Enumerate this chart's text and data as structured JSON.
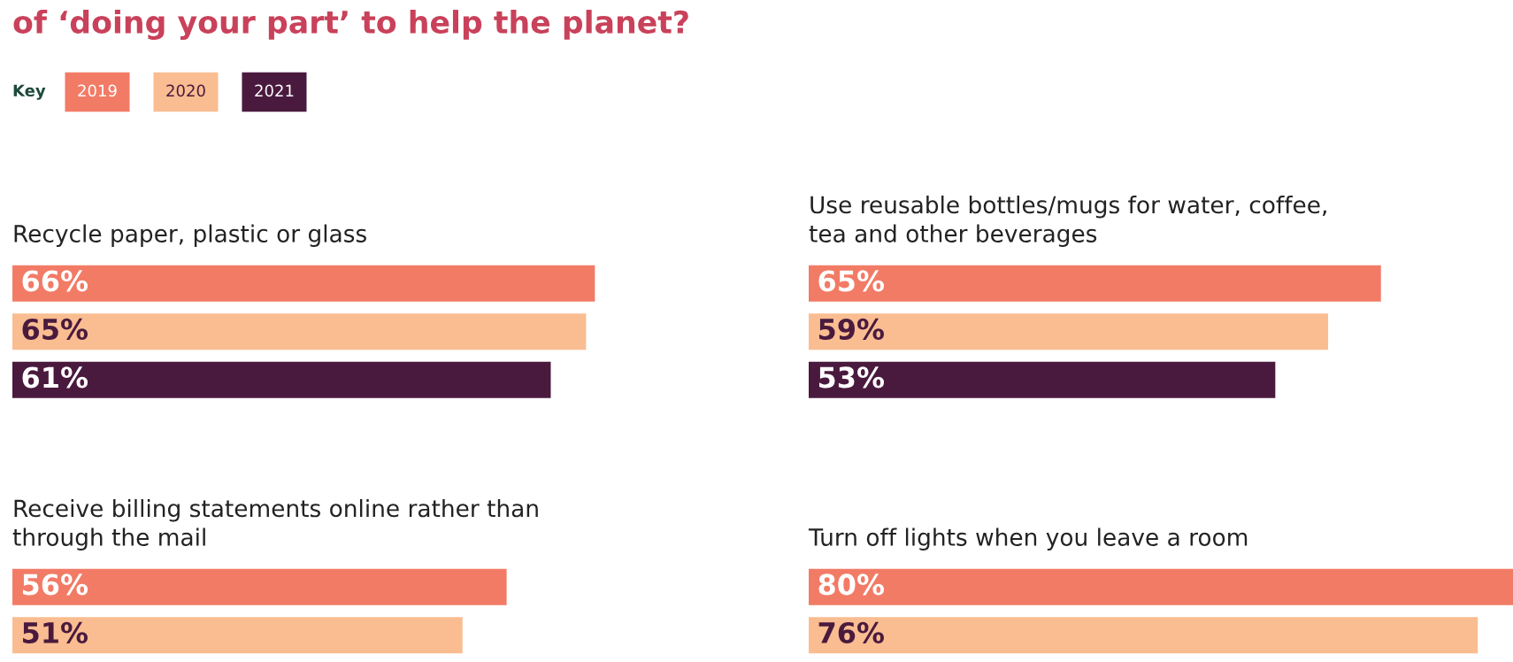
{
  "chart_data": [
    {
      "type": "bar",
      "orientation": "horizontal",
      "title": "Recycle paper, plastic or glass",
      "annotations": [
        "of ‘doing your part’ to help the planet?"
      ],
      "legend": "top left",
      "legend_title": "Key",
      "tick_labels": false,
      "categories": [
        null
      ],
      "series": [
        {
          "name": "2019",
          "color": "#f27b66",
          "values": [
            66
          ],
          "value_labels": [
            "66%"
          ]
        },
        {
          "name": "2020",
          "color": "#f9bd91",
          "values": [
            65
          ],
          "value_labels": [
            "65%"
          ]
        },
        {
          "name": "2021",
          "color": "#4a1a3e",
          "values": [
            61
          ],
          "value_labels": [
            "61%"
          ]
        }
      ]
    },
    {
      "type": "bar",
      "orientation": "horizontal",
      "title": "Use reusable bottles/mugs for water, coffee,\ntea and other beverages",
      "tick_labels": false,
      "categories": [
        null
      ],
      "series": [
        {
          "color": "#f27b66",
          "values": [
            65
          ],
          "value_labels": [
            "65%"
          ]
        },
        {
          "color": "#f9bd91",
          "values": [
            59
          ],
          "value_labels": [
            "59%"
          ]
        },
        {
          "color": "#4a1a3e",
          "values": [
            53
          ],
          "value_labels": [
            "53%"
          ]
        }
      ]
    },
    {
      "type": "bar",
      "orientation": "horizontal",
      "title": "Receive billing statements online rather than\nthrough the mail",
      "tick_labels": false,
      "categories": [
        null
      ],
      "series": [
        {
          "color": "#f27b66",
          "values": [
            56
          ],
          "value_labels": [
            "56%"
          ]
        },
        {
          "color": "#f9bd91",
          "values": [
            51
          ],
          "value_labels": [
            "51%"
          ]
        }
      ]
    },
    {
      "type": "bar",
      "orientation": "horizontal",
      "title": "Turn off lights when you leave a room",
      "tick_labels": false,
      "categories": [
        null
      ],
      "series": [
        {
          "color": "#f27b66",
          "values": [
            80
          ],
          "value_labels": [
            "80%"
          ]
        },
        {
          "color": "#f9bd91",
          "values": [
            76
          ],
          "value_labels": [
            "76%"
          ]
        }
      ]
    }
  ]
}
